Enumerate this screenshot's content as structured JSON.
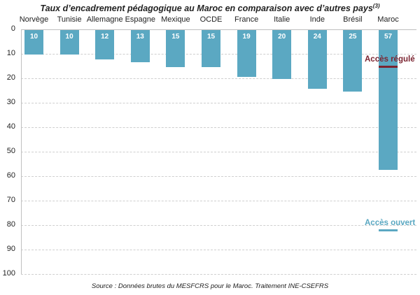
{
  "chart_data": {
    "type": "bar",
    "title": "Taux d’encadrement pédagogique au Maroc en comparaison avec d’autres pays",
    "title_superscript": "(3)",
    "orientation": "vertical-downward",
    "categories": [
      "Norvège",
      "Tunisie",
      "Allemagne",
      "Espagne",
      "Mexique",
      "OCDE",
      "France",
      "Italie",
      "Inde",
      "Brésil",
      "Maroc"
    ],
    "values": [
      10,
      10,
      12,
      13,
      15,
      15,
      19,
      20,
      24,
      25,
      57
    ],
    "bar_labels": [
      "10",
      "10",
      "12",
      "13",
      "15",
      "15",
      "19",
      "20",
      "24",
      "25",
      "57"
    ],
    "xlabel": "",
    "ylabel": "",
    "ylim": [
      0,
      100
    ],
    "yticks": [
      "0",
      "10",
      "20",
      "30",
      "40",
      "50",
      "60",
      "70",
      "80",
      "90",
      "100"
    ],
    "grid": true,
    "legend": null,
    "annotations": [
      {
        "text": "Accès régulé",
        "category": "Maroc",
        "value": 15,
        "color": "#7b2431"
      },
      {
        "text": "Accès ouvert",
        "category": "Maroc",
        "value": 82,
        "color": "#5ba8c2"
      }
    ],
    "source": "Source : Données brutes du MESFCRS pour le Maroc. Traitement INE-CSEFRS"
  },
  "colors": {
    "bar": "#5ba8c2",
    "regule": "#7b2431",
    "ouvert": "#5ba8c2"
  }
}
